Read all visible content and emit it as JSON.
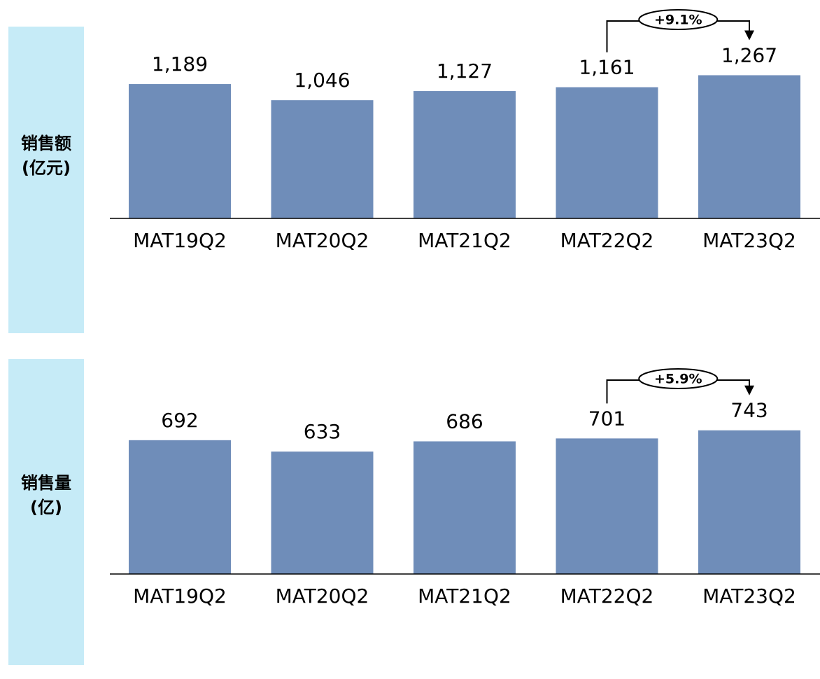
{
  "chart_data": [
    {
      "type": "bar",
      "ylabel": "销售额(亿元)",
      "categories": [
        "MAT19Q2",
        "MAT20Q2",
        "MAT21Q2",
        "MAT22Q2",
        "MAT23Q2"
      ],
      "values": [
        1189,
        1046,
        1127,
        1161,
        1267
      ],
      "value_labels": [
        "1,189",
        "1,046",
        "1,127",
        "1,161",
        "1,267"
      ],
      "color": "#6f8db9",
      "ylim": [
        0,
        1400
      ],
      "annotation": "+9.1%"
    },
    {
      "type": "bar",
      "ylabel": "销售量(亿)",
      "categories": [
        "MAT19Q2",
        "MAT20Q2",
        "MAT21Q2",
        "MAT22Q2",
        "MAT23Q2"
      ],
      "values": [
        692,
        633,
        686,
        701,
        743
      ],
      "color": "#6f8db9",
      "ylim": [
        0,
        800
      ],
      "annotation": "+5.9%"
    }
  ]
}
